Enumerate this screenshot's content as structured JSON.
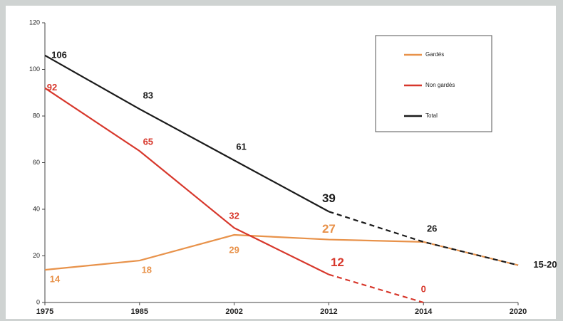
{
  "chart_data": {
    "type": "line",
    "categories": [
      "1975",
      "1985",
      "2002",
      "2012",
      "2014",
      "2020"
    ],
    "ylim": [
      0,
      120
    ],
    "yticks": [
      0,
      20,
      40,
      60,
      80,
      100,
      120
    ],
    "legend": "upper right",
    "series": [
      {
        "name": "Gardés",
        "color": "#e8924a",
        "values": [
          14,
          18,
          29,
          27,
          26,
          16
        ],
        "dashed_from": 4,
        "labeled": [
          0,
          1,
          2,
          3
        ]
      },
      {
        "name": "Non gardés",
        "color": "#d7372b",
        "values": [
          92,
          65,
          32,
          12,
          0,
          null
        ],
        "dashed_from": 3,
        "labeled": [
          0,
          1,
          2,
          3,
          4
        ]
      },
      {
        "name": "Total",
        "color": "#1a1a1a",
        "values": [
          106,
          83,
          61,
          39,
          26,
          16
        ],
        "dashed_from": 3,
        "labeled": [
          0,
          1,
          2,
          3,
          4,
          5
        ],
        "value_labels": [
          null,
          null,
          null,
          null,
          null,
          "15-20"
        ]
      }
    ]
  }
}
